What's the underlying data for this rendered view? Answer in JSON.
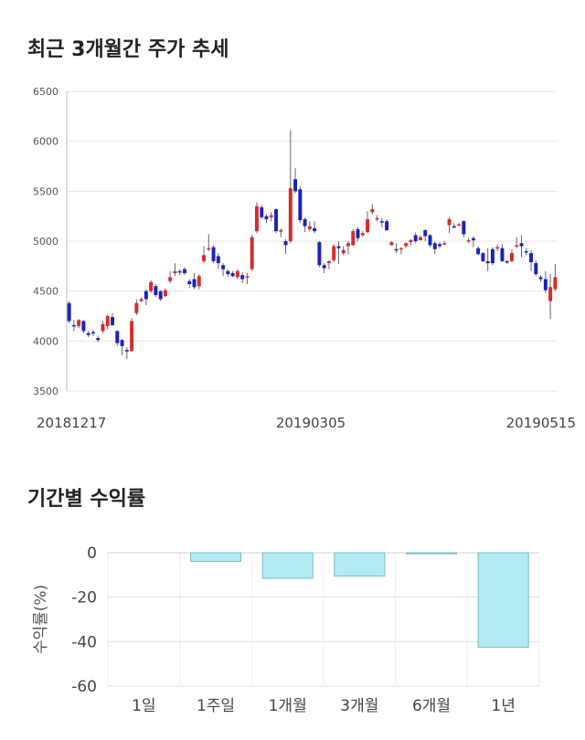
{
  "sections": {
    "price_title": "최근 3개월간 주가 추세",
    "returns_title": "기간별 수익률"
  },
  "chart_data": [
    {
      "type": "candlestick",
      "title": "최근 3개월간 주가 추세",
      "ylim": [
        3500,
        6500
      ],
      "yticks": [
        3500,
        4000,
        4500,
        5000,
        5500,
        6000,
        6500
      ],
      "date_labels": [
        "20181217",
        "20190305",
        "20190515"
      ],
      "up_color": "#d62c2c",
      "down_color": "#1a23b8",
      "grid": true,
      "candles": [
        [
          4380,
          4200,
          4400,
          4180
        ],
        [
          4160,
          4150,
          4210,
          4100
        ],
        [
          4150,
          4210,
          4220,
          4130
        ],
        [
          4200,
          4100,
          4210,
          4080
        ],
        [
          4080,
          4060,
          4100,
          4040
        ],
        [
          4090,
          4080,
          4110,
          4050
        ],
        [
          4030,
          4010,
          4050,
          3990
        ],
        [
          4100,
          4170,
          4200,
          4080
        ],
        [
          4150,
          4250,
          4270,
          4120
        ],
        [
          4240,
          4160,
          4280,
          4150
        ],
        [
          4100,
          3980,
          4110,
          3950
        ],
        [
          4010,
          3950,
          4020,
          3860
        ],
        [
          3910,
          3900,
          3940,
          3820
        ],
        [
          3900,
          4200,
          4230,
          3890
        ],
        [
          4280,
          4380,
          4420,
          4260
        ],
        [
          4400,
          4420,
          4440,
          4390
        ],
        [
          4500,
          4420,
          4520,
          4360
        ],
        [
          4500,
          4590,
          4610,
          4480
        ],
        [
          4550,
          4460,
          4570,
          4440
        ],
        [
          4500,
          4420,
          4510,
          4400
        ],
        [
          4450,
          4510,
          4530,
          4440
        ],
        [
          4600,
          4640,
          4700,
          4580
        ],
        [
          4680,
          4700,
          4780,
          4650
        ],
        [
          4700,
          4690,
          4720,
          4660
        ],
        [
          4720,
          4680,
          4740,
          4660
        ],
        [
          4600,
          4570,
          4620,
          4530
        ],
        [
          4620,
          4540,
          4680,
          4520
        ],
        [
          4550,
          4650,
          4670,
          4520
        ],
        [
          4800,
          4860,
          4950,
          4780
        ],
        [
          4920,
          4930,
          5070,
          4900
        ],
        [
          4940,
          4800,
          4960,
          4780
        ],
        [
          4850,
          4780,
          4880,
          4720
        ],
        [
          4760,
          4720,
          4780,
          4650
        ],
        [
          4700,
          4670,
          4720,
          4640
        ],
        [
          4680,
          4650,
          4700,
          4640
        ],
        [
          4640,
          4700,
          4720,
          4620
        ],
        [
          4660,
          4620,
          4690,
          4580
        ],
        [
          4640,
          4650,
          4680,
          4570
        ],
        [
          4720,
          5040,
          5060,
          4700
        ],
        [
          5100,
          5350,
          5390,
          5080
        ],
        [
          5340,
          5240,
          5360,
          5220
        ],
        [
          5250,
          5220,
          5270,
          5180
        ],
        [
          5240,
          5260,
          5290,
          5200
        ],
        [
          5320,
          5100,
          5330,
          5080
        ],
        [
          5100,
          5110,
          5130,
          5040
        ],
        [
          5000,
          4960,
          5020,
          4870
        ],
        [
          5000,
          5530,
          6110,
          4980
        ],
        [
          5620,
          5500,
          5730,
          5480
        ],
        [
          5520,
          5210,
          5550,
          5180
        ],
        [
          5220,
          5150,
          5240,
          5090
        ],
        [
          5120,
          5150,
          5200,
          5100
        ],
        [
          5130,
          5100,
          5200,
          5080
        ],
        [
          4990,
          4760,
          5000,
          4740
        ],
        [
          4760,
          4730,
          4780,
          4680
        ],
        [
          4780,
          4800,
          4810,
          4720
        ],
        [
          4810,
          4950,
          4970,
          4790
        ],
        [
          4950,
          4930,
          5000,
          4770
        ],
        [
          4880,
          4910,
          4950,
          4860
        ],
        [
          4950,
          4980,
          5000,
          4870
        ],
        [
          4960,
          5100,
          5120,
          4950
        ],
        [
          5120,
          5030,
          5140,
          5000
        ],
        [
          5060,
          5080,
          5100,
          5040
        ],
        [
          5090,
          5220,
          5300,
          5080
        ],
        [
          5290,
          5320,
          5370,
          5270
        ],
        [
          5230,
          5230,
          5260,
          5200
        ],
        [
          5200,
          5190,
          5230,
          5140
        ],
        [
          5200,
          5110,
          5220,
          5100
        ],
        [
          4960,
          4990,
          5000,
          4960
        ],
        [
          4920,
          4910,
          4980,
          4880
        ],
        [
          4920,
          4930,
          4940,
          4870
        ],
        [
          4950,
          4980,
          4990,
          4930
        ],
        [
          4990,
          5010,
          5020,
          4960
        ],
        [
          5060,
          5000,
          5090,
          4980
        ],
        [
          5010,
          5040,
          5060,
          5010
        ],
        [
          5110,
          5050,
          5120,
          5000
        ],
        [
          5060,
          4960,
          5070,
          4940
        ],
        [
          4980,
          4920,
          5000,
          4870
        ],
        [
          4970,
          4950,
          4990,
          4930
        ],
        [
          4970,
          4980,
          5000,
          4960
        ],
        [
          5160,
          5220,
          5240,
          5080
        ],
        [
          5150,
          5140,
          5180,
          5130
        ],
        [
          5160,
          5170,
          5180,
          5150
        ],
        [
          5200,
          5070,
          5210,
          5040
        ],
        [
          5010,
          5010,
          5030,
          4980
        ],
        [
          5030,
          5010,
          5050,
          4940
        ],
        [
          4930,
          4870,
          4950,
          4860
        ],
        [
          4880,
          4800,
          4890,
          4790
        ],
        [
          4800,
          4780,
          4930,
          4700
        ],
        [
          4920,
          4780,
          4940,
          4760
        ],
        [
          4940,
          4940,
          4970,
          4900
        ],
        [
          4930,
          4800,
          4970,
          4790
        ],
        [
          4800,
          4790,
          4810,
          4770
        ],
        [
          4800,
          4880,
          4920,
          4790
        ],
        [
          4950,
          4960,
          5040,
          4930
        ],
        [
          4980,
          4950,
          5060,
          4840
        ],
        [
          4900,
          4890,
          4930,
          4860
        ],
        [
          4880,
          4790,
          4910,
          4700
        ],
        [
          4780,
          4670,
          4810,
          4650
        ],
        [
          4640,
          4620,
          4660,
          4590
        ],
        [
          4620,
          4510,
          4700,
          4480
        ],
        [
          4400,
          4540,
          4670,
          4220
        ],
        [
          4520,
          4640,
          4770,
          4500
        ]
      ]
    },
    {
      "type": "bar",
      "title": "기간별 수익률",
      "ylabel": "수익률(%)",
      "ylim": [
        -60,
        0
      ],
      "yticks": [
        0,
        -20,
        -40,
        -60
      ],
      "categories": [
        "1일",
        "1주일",
        "1개월",
        "3개월",
        "6개월",
        "1년"
      ],
      "values": [
        0,
        -3.9,
        -11.5,
        -10.5,
        -0.5,
        -42.5
      ],
      "bar_color": "#b2ebf2",
      "bar_edge_color": "#7fb8c0",
      "grid": true
    }
  ]
}
